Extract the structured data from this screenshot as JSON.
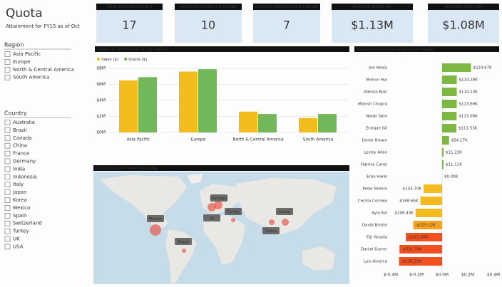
{
  "header": {
    "title": "Quota",
    "subtitle": "Attainment for FY15 as of Oct"
  },
  "slicers": [
    {
      "title": "Region",
      "items": [
        "Asia Pacific",
        "Europe",
        "North & Central America",
        "South America"
      ]
    },
    {
      "title": "Country",
      "items": [
        "Australia",
        "Brazil",
        "Canada",
        "China",
        "France",
        "Germany",
        "India",
        "Indonesia",
        "Italy",
        "Japan",
        "Korea",
        "Mexico",
        "Spain",
        "Switzerland",
        "Turkey",
        "UK",
        "USA"
      ]
    }
  ],
  "kpis": [
    {
      "label": "Total account owners",
      "value": 17
    },
    {
      "label": "Account owners on target",
      "value": 10
    },
    {
      "label": "Account owners not on target",
      "value": 7
    },
    {
      "label": "Average quota ($)",
      "value": "$1.13M"
    },
    {
      "label": "Average sales ($)",
      "value": "$1.08M"
    }
  ],
  "chart_data": [
    {
      "type": "bar",
      "title": "Sales ($) and quota ($) by region",
      "categories": [
        "Asia Pacific",
        "Europe",
        "North & Central America",
        "South America"
      ],
      "series": [
        {
          "name": "Sales ($)",
          "color": "#f2bc1c",
          "values": [
            6.5,
            7.6,
            2.6,
            1.8
          ]
        },
        {
          "name": "Quota ($)",
          "color": "#72b85a",
          "values": [
            6.9,
            7.9,
            2.3,
            2.3
          ]
        }
      ],
      "ylim": [
        0,
        8
      ],
      "yticks": [
        {
          "value": 0,
          "label": "$0M"
        },
        {
          "value": 2,
          "label": "$2M"
        },
        {
          "value": 4,
          "label": "$4M"
        },
        {
          "value": 6,
          "label": "$6M"
        },
        {
          "value": 8,
          "label": "$8M"
        }
      ],
      "grid": true
    },
    {
      "type": "hbar",
      "title": "Variance to quota by account owner",
      "categories": [
        "Joe Healy",
        "Vernon Hui",
        "Alessio Roic",
        "Manish Chopra",
        "Naoki Sato",
        "Enrique Gil",
        "Derek Brown",
        "Lesley Allan",
        "Fabrice Canel",
        "Eran Harel",
        "Peter Brehm",
        "Cecilia Cornejo",
        "Ayla Kol",
        "David Bristol",
        "Eiji Yasuda",
        "Daniel Durrer",
        "Luis Alverca"
      ],
      "values": [
        0.22467,
        0.11428,
        0.11413,
        0.11389,
        0.11308,
        0.11153,
        0.05417,
        0.01123,
        0.01111,
        0,
        -0.1437,
        -0.16865,
        -0.20643,
        -0.22512,
        -0.28308,
        -0.33176,
        -0.3362
      ],
      "value_labels": [
        "$224.67K",
        "$114.28K",
        "$114.13K",
        "$113.89K",
        "$113.08K",
        "$111.53K",
        "$54.17K",
        "$11.23K",
        "$11.11K",
        "$0.00K",
        "-$143.70K",
        "-$168.65K",
        "-$206.43K",
        "-$225.12K",
        "-$283.08K",
        "-$331.76K",
        "-$336.20K"
      ],
      "colors": [
        "#7eb843",
        "#7eb843",
        "#7eb843",
        "#7eb843",
        "#7eb843",
        "#7eb843",
        "#7eb843",
        "#7eb843",
        "#7eb843",
        "#7eb843",
        "#f4bb1e",
        "#f4bb1e",
        "#f4bb1e",
        "#f5a21c",
        "#f2501f",
        "#f2501f",
        "#f2501f"
      ],
      "xlim": [
        -0.4,
        0.4
      ],
      "xticks": [
        {
          "value": -0.4,
          "label": "$-0.4M"
        },
        {
          "value": -0.2,
          "label": "$-0.2M"
        },
        {
          "value": 0,
          "label": "$0.0M"
        },
        {
          "value": 0.2,
          "label": "$0.2M"
        },
        {
          "value": 0.4,
          "label": "$0.4M"
        }
      ],
      "grid": false
    }
  ],
  "map": {
    "title": "Countries not meeting quota",
    "labels": [
      "Mexico",
      "Germany",
      "Turkey",
      "UK",
      "Brazil",
      "China",
      "Korea"
    ]
  }
}
